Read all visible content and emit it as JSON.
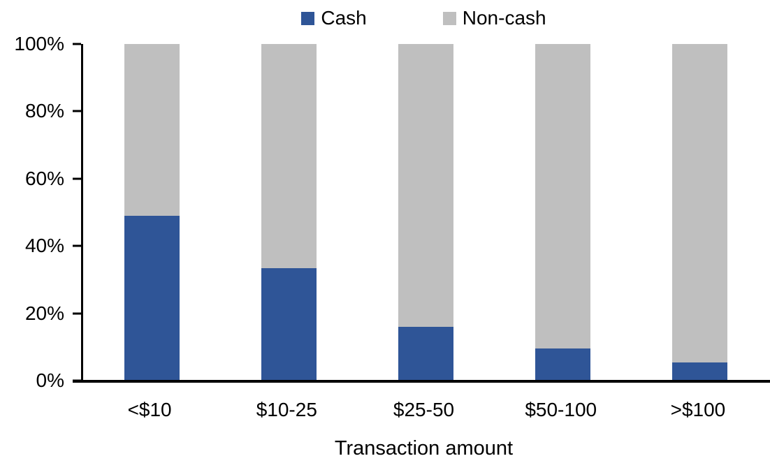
{
  "chart_data": {
    "type": "bar",
    "stacked": true,
    "stack_mode": "percent",
    "title": "",
    "xlabel": "Transaction amount",
    "ylabel": "",
    "categories": [
      "<$10",
      "$10-25",
      "$25-50",
      "$50-100",
      ">$100"
    ],
    "series": [
      {
        "name": "Cash",
        "color": "#2F5597",
        "values": [
          49,
          33.5,
          16,
          9.5,
          5.5
        ]
      },
      {
        "name": "Non-cash",
        "color": "#BFBFBF",
        "values": [
          51,
          66.5,
          84,
          90.5,
          94.5
        ]
      }
    ],
    "ylim": [
      0,
      100
    ],
    "y_tick_labels": [
      "100%",
      "80%",
      "60%",
      "40%",
      "20%",
      "0%"
    ],
    "grid": false,
    "legend_position": "top-center",
    "axis_color": "#000000"
  }
}
